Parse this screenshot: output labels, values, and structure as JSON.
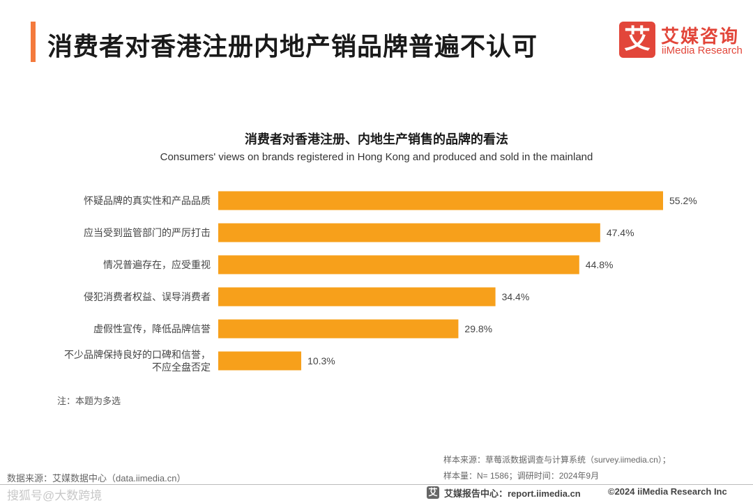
{
  "header": {
    "title": "消费者对香港注册内地产销品牌普遍不认可"
  },
  "logo": {
    "mark": "艾",
    "name_cn": "艾媒咨询",
    "name_en": "iiMedia Research"
  },
  "colors": {
    "accent": "#f47a3c",
    "bar": "#f7a01b",
    "logo": "#e2463a"
  },
  "chart_data": {
    "type": "bar",
    "orientation": "horizontal",
    "title": "消费者对香港注册、内地生产销售的品牌的看法",
    "subtitle": "Consumers' views on brands registered in Hong Kong and produced and sold in the mainland",
    "categories": [
      [
        "怀疑品牌的真实性和产品品质"
      ],
      [
        "应当受到监管部门的严厉打击"
      ],
      [
        "情况普遍存在，应受重视"
      ],
      [
        "侵犯消费者权益、误导消费者"
      ],
      [
        "虚假性宣传，降低品牌信誉"
      ],
      [
        "不少品牌保持良好的口碑和信誉，",
        "不应全盘否定"
      ]
    ],
    "values": [
      55.2,
      47.4,
      44.8,
      34.4,
      29.8,
      10.3
    ],
    "value_labels": [
      "55.2%",
      "47.4%",
      "44.8%",
      "34.4%",
      "29.8%",
      "10.3%"
    ],
    "unit": "%",
    "xlim": [
      0,
      55.2
    ],
    "grid": false,
    "legend": "none"
  },
  "note": "注：本题为多选",
  "source": {
    "left": "数据来源：艾媒数据中心（data.iimedia.cn）",
    "sample_source": "样本来源：草莓派数据调查与计算系统（survey.iimedia.cn）；",
    "sample_info": "样本量：N= 1586；调研时间：2024年9月"
  },
  "footer": {
    "watermark": "搜狐号@大数跨境",
    "logo_mark": "艾",
    "center": "艾媒报告中心：report.iimedia.cn",
    "right": "©2024  iiMedia Research  Inc"
  }
}
